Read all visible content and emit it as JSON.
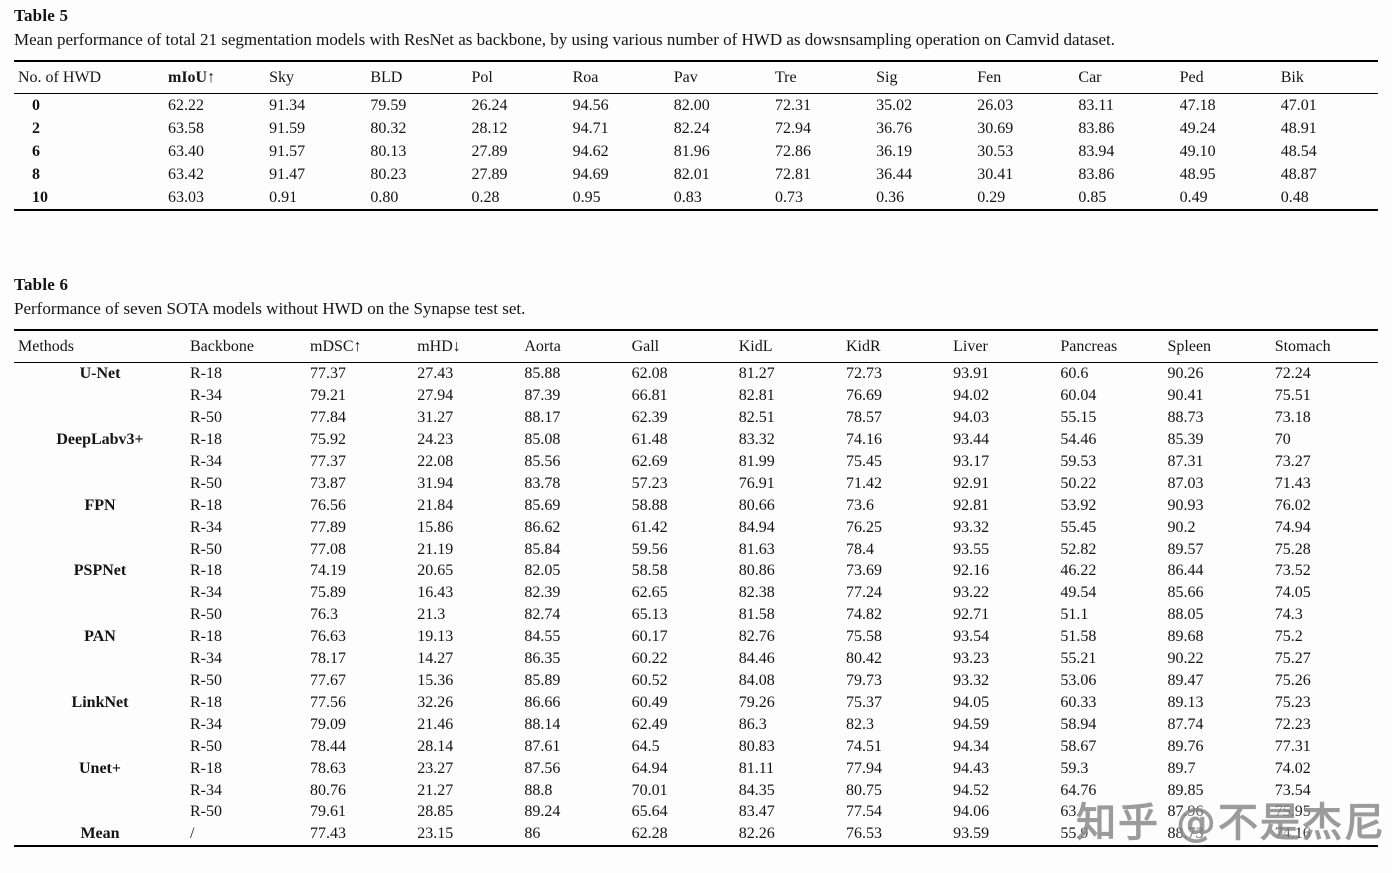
{
  "watermark": {
    "text": "知乎 @不是杰尼"
  },
  "table5": {
    "label": "Table 5",
    "caption": "Mean performance of total 21 segmentation models with ResNet as backbone, by using various number of HWD as dowsnsampling operation on Camvid dataset.",
    "headers": [
      "No. of HWD",
      "mIoU↑",
      "Sky",
      "BLD",
      "Pol",
      "Roa",
      "Pav",
      "Tre",
      "Sig",
      "Fen",
      "Car",
      "Ped",
      "Bik"
    ],
    "bold_header_indexes": [
      1
    ],
    "bold_first_col": true,
    "rows": [
      [
        "0",
        "62.22",
        "91.34",
        "79.59",
        "26.24",
        "94.56",
        "82.00",
        "72.31",
        "35.02",
        "26.03",
        "83.11",
        "47.18",
        "47.01"
      ],
      [
        "2",
        "63.58",
        "91.59",
        "80.32",
        "28.12",
        "94.71",
        "82.24",
        "72.94",
        "36.76",
        "30.69",
        "83.86",
        "49.24",
        "48.91"
      ],
      [
        "6",
        "63.40",
        "91.57",
        "80.13",
        "27.89",
        "94.62",
        "81.96",
        "72.86",
        "36.19",
        "30.53",
        "83.94",
        "49.10",
        "48.54"
      ],
      [
        "8",
        "63.42",
        "91.47",
        "80.23",
        "27.89",
        "94.69",
        "82.01",
        "72.81",
        "36.44",
        "30.41",
        "83.86",
        "48.95",
        "48.87"
      ],
      [
        "10",
        "63.03",
        "0.91",
        "0.80",
        "0.28",
        "0.95",
        "0.83",
        "0.73",
        "0.36",
        "0.29",
        "0.85",
        "0.49",
        "0.48"
      ]
    ]
  },
  "table6": {
    "label": "Table 6",
    "caption": "Performance of seven SOTA models without HWD on the Synapse test set.",
    "headers": [
      "Methods",
      "Backbone",
      "mDSC↑",
      "mHD↓",
      "Aorta",
      "Gall",
      "KidL",
      "KidR",
      "Liver",
      "Pancreas",
      "Spleen",
      "Stomach"
    ],
    "bold_header_indexes": [],
    "bold_first_col": true,
    "rows": [
      [
        "U-Net",
        "R-18",
        "77.37",
        "27.43",
        "85.88",
        "62.08",
        "81.27",
        "72.73",
        "93.91",
        "60.6",
        "90.26",
        "72.24"
      ],
      [
        "",
        "R-34",
        "79.21",
        "27.94",
        "87.39",
        "66.81",
        "82.81",
        "76.69",
        "94.02",
        "60.04",
        "90.41",
        "75.51"
      ],
      [
        "",
        "R-50",
        "77.84",
        "31.27",
        "88.17",
        "62.39",
        "82.51",
        "78.57",
        "94.03",
        "55.15",
        "88.73",
        "73.18"
      ],
      [
        "DeepLabv3+",
        "R-18",
        "75.92",
        "24.23",
        "85.08",
        "61.48",
        "83.32",
        "74.16",
        "93.44",
        "54.46",
        "85.39",
        "70"
      ],
      [
        "",
        "R-34",
        "77.37",
        "22.08",
        "85.56",
        "62.69",
        "81.99",
        "75.45",
        "93.17",
        "59.53",
        "87.31",
        "73.27"
      ],
      [
        "",
        "R-50",
        "73.87",
        "31.94",
        "83.78",
        "57.23",
        "76.91",
        "71.42",
        "92.91",
        "50.22",
        "87.03",
        "71.43"
      ],
      [
        "FPN",
        "R-18",
        "76.56",
        "21.84",
        "85.69",
        "58.88",
        "80.66",
        "73.6",
        "92.81",
        "53.92",
        "90.93",
        "76.02"
      ],
      [
        "",
        "R-34",
        "77.89",
        "15.86",
        "86.62",
        "61.42",
        "84.94",
        "76.25",
        "93.32",
        "55.45",
        "90.2",
        "74.94"
      ],
      [
        "",
        "R-50",
        "77.08",
        "21.19",
        "85.84",
        "59.56",
        "81.63",
        "78.4",
        "93.55",
        "52.82",
        "89.57",
        "75.28"
      ],
      [
        "PSPNet",
        "R-18",
        "74.19",
        "20.65",
        "82.05",
        "58.58",
        "80.86",
        "73.69",
        "92.16",
        "46.22",
        "86.44",
        "73.52"
      ],
      [
        "",
        "R-34",
        "75.89",
        "16.43",
        "82.39",
        "62.65",
        "82.38",
        "77.24",
        "93.22",
        "49.54",
        "85.66",
        "74.05"
      ],
      [
        "",
        "R-50",
        "76.3",
        "21.3",
        "82.74",
        "65.13",
        "81.58",
        "74.82",
        "92.71",
        "51.1",
        "88.05",
        "74.3"
      ],
      [
        "PAN",
        "R-18",
        "76.63",
        "19.13",
        "84.55",
        "60.17",
        "82.76",
        "75.58",
        "93.54",
        "51.58",
        "89.68",
        "75.2"
      ],
      [
        "",
        "R-34",
        "78.17",
        "14.27",
        "86.35",
        "60.22",
        "84.46",
        "80.42",
        "93.23",
        "55.21",
        "90.22",
        "75.27"
      ],
      [
        "",
        "R-50",
        "77.67",
        "15.36",
        "85.89",
        "60.52",
        "84.08",
        "79.73",
        "93.32",
        "53.06",
        "89.47",
        "75.26"
      ],
      [
        "LinkNet",
        "R-18",
        "77.56",
        "32.26",
        "86.66",
        "60.49",
        "79.26",
        "75.37",
        "94.05",
        "60.33",
        "89.13",
        "75.23"
      ],
      [
        "",
        "R-34",
        "79.09",
        "21.46",
        "88.14",
        "62.49",
        "86.3",
        "82.3",
        "94.59",
        "58.94",
        "87.74",
        "72.23"
      ],
      [
        "",
        "R-50",
        "78.44",
        "28.14",
        "87.61",
        "64.5",
        "80.83",
        "74.51",
        "94.34",
        "58.67",
        "89.76",
        "77.31"
      ],
      [
        "Unet+",
        "R-18",
        "78.63",
        "23.27",
        "87.56",
        "64.94",
        "81.11",
        "77.94",
        "94.43",
        "59.3",
        "89.7",
        "74.02"
      ],
      [
        "",
        "R-34",
        "80.76",
        "21.27",
        "88.8",
        "70.01",
        "84.35",
        "80.75",
        "94.52",
        "64.76",
        "89.85",
        "73.54"
      ],
      [
        "",
        "R-50",
        "79.61",
        "28.85",
        "89.24",
        "65.64",
        "83.47",
        "77.54",
        "94.06",
        "63",
        "87.96",
        "75.95"
      ],
      [
        "Mean",
        "/",
        "77.43",
        "23.15",
        "86",
        "62.28",
        "82.26",
        "76.53",
        "93.59",
        "55.9",
        "88.73",
        "74.16"
      ]
    ]
  }
}
